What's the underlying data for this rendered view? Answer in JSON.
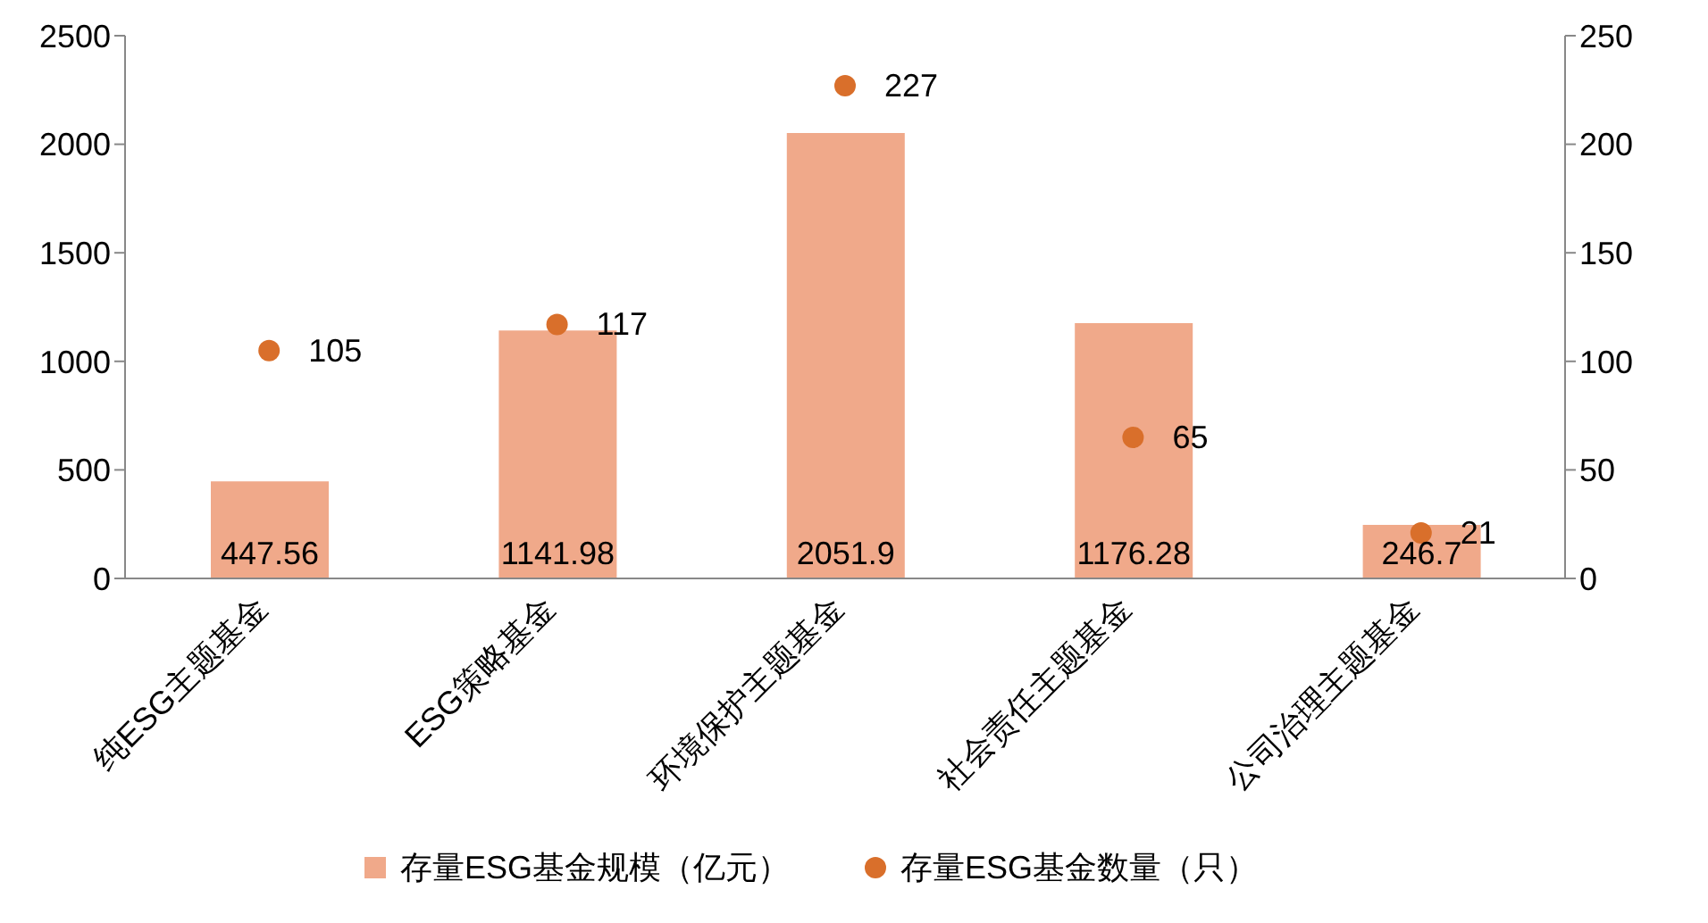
{
  "chart_data": {
    "type": "bar",
    "categories": [
      "纯ESG主题基金",
      "ESG策略基金",
      "环境保护主题基金",
      "社会责任主题基金",
      "公司治理主题基金"
    ],
    "series": [
      {
        "name": "存量ESG基金规模（亿元）",
        "color": "#f0a98a",
        "values": [
          447.56,
          1141.98,
          2051.9,
          1176.28,
          246.7
        ]
      },
      {
        "name": "存量ESG基金数量（只）",
        "type": "scatter",
        "axis": "y2",
        "color": "#d96f2b",
        "values": [
          105,
          117,
          227,
          65,
          21
        ]
      }
    ],
    "ylim": [
      0,
      2500
    ],
    "yticks": [
      0,
      500,
      1000,
      1500,
      2000,
      2500
    ],
    "y2lim": [
      0,
      250
    ],
    "y2ticks": [
      0,
      50,
      100,
      150,
      200,
      250
    ],
    "legend": "bottom",
    "marker": "circle",
    "data_labels": true
  }
}
